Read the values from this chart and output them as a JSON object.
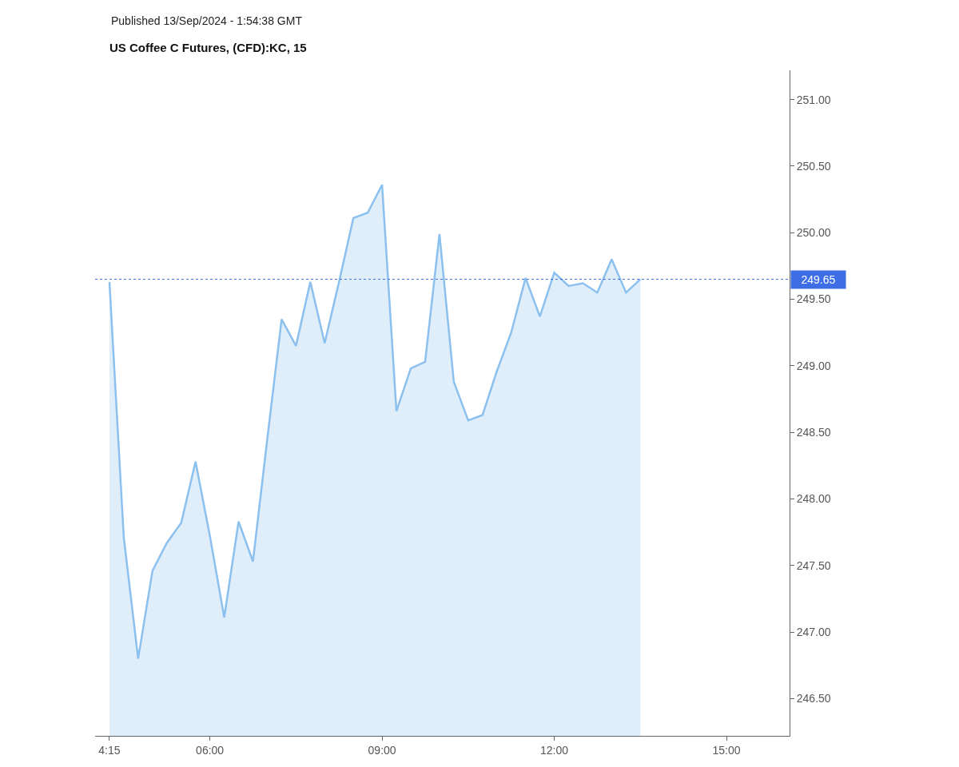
{
  "chart_data": {
    "type": "area",
    "title": "US Coffee C Futures, (CFD):KC, 15",
    "annotations": [
      "Published 13/Sep/2024 - 1:54:38 GMT"
    ],
    "x": [
      4.25,
      4.5,
      4.75,
      5.0,
      5.25,
      5.5,
      5.75,
      6.0,
      6.25,
      6.5,
      6.75,
      7.0,
      7.25,
      7.5,
      7.75,
      8.0,
      8.25,
      8.5,
      8.75,
      9.0,
      9.25,
      9.5,
      9.75,
      10.0,
      10.25,
      10.5,
      10.75,
      11.0,
      11.25,
      11.5,
      11.75,
      12.0,
      12.25,
      12.5,
      12.75,
      13.0,
      13.25,
      13.5
    ],
    "values": [
      249.63,
      247.71,
      246.8,
      247.46,
      247.67,
      247.82,
      248.28,
      247.72,
      247.11,
      247.83,
      247.53,
      248.45,
      249.35,
      249.15,
      249.63,
      249.17,
      249.63,
      250.11,
      250.15,
      250.36,
      248.66,
      248.98,
      249.03,
      249.99,
      248.88,
      248.59,
      248.63,
      248.96,
      249.25,
      249.66,
      249.37,
      249.7,
      249.6,
      249.62,
      249.55,
      249.8,
      249.55,
      249.65
    ],
    "color": "#8cc0ee",
    "xlim": [
      4.0,
      16.1
    ],
    "xticks": [
      {
        "value": 4.25,
        "label": "4:15"
      },
      {
        "value": 6,
        "label": "06:00"
      },
      {
        "value": 9,
        "label": "09:00"
      },
      {
        "value": 12,
        "label": "12:00"
      },
      {
        "value": 15,
        "label": "15:00"
      }
    ],
    "ylim": [
      246.22,
      251.22
    ],
    "yticks": [
      {
        "value": 246.5,
        "label": "246.50"
      },
      {
        "value": 247,
        "label": "247.00"
      },
      {
        "value": 247.5,
        "label": "247.50"
      },
      {
        "value": 248,
        "label": "248.00"
      },
      {
        "value": 248.5,
        "label": "248.50"
      },
      {
        "value": 249,
        "label": "249.00"
      },
      {
        "value": 249.5,
        "label": "249.50"
      },
      {
        "value": 250,
        "label": "250.00"
      },
      {
        "value": 250.5,
        "label": "250.50"
      },
      {
        "value": 251,
        "label": "251.00"
      }
    ],
    "ref_lines": [
      {
        "axis": "y",
        "value": 249.65,
        "label": "249.65",
        "color": "#3d6ee6",
        "line_style": "dotted"
      }
    ],
    "grid": false,
    "line_style": "solid"
  }
}
